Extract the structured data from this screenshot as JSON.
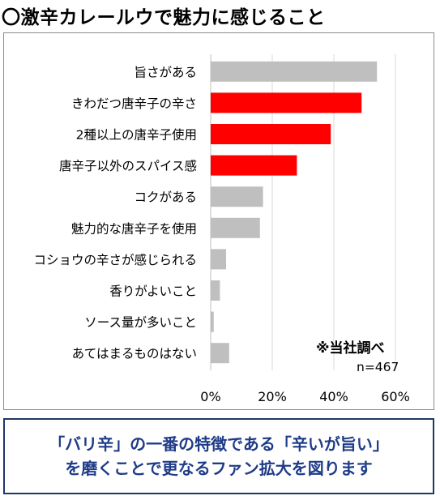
{
  "title": "〇激辛カレールウで魅力に感じること",
  "chart_data": {
    "type": "bar",
    "orientation": "horizontal",
    "categories": [
      "旨さがある",
      "きわだつ唐辛子の辛さ",
      "2種以上の唐辛子使用",
      "唐辛子以外のスパイス感",
      "コクがある",
      "魅力的な唐辛子を使用",
      "コショウの辛さが感じられる",
      "香りがよいこと",
      "ソース量が多いこと",
      "あてはまるものはない"
    ],
    "values": [
      54,
      49,
      39,
      28,
      17,
      16,
      5,
      3,
      1,
      6
    ],
    "unit": "%",
    "highlighted": [
      false,
      true,
      true,
      true,
      false,
      false,
      false,
      false,
      false,
      false
    ],
    "x_ticks": [
      "0%",
      "20%",
      "40%",
      "60%"
    ],
    "xlim": [
      0,
      60
    ],
    "grid": true,
    "colors": {
      "highlight": "#ff0000",
      "default": "#bfbfbf",
      "grid": "#d9d9d9"
    }
  },
  "notes": {
    "source": "※当社調べ",
    "sample": "n=467"
  },
  "footer": {
    "line1": "「バリ辛」の一番の特徴である「辛いが旨い」",
    "line2": "を磨くことで更なるファン拡大を図ります"
  }
}
